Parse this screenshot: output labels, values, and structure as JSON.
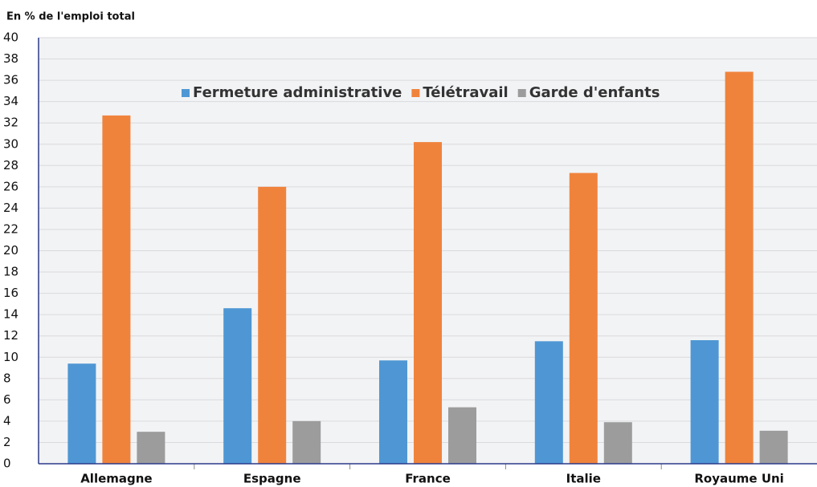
{
  "chart_data": {
    "type": "bar",
    "y_axis_label": "En % de l'emploi total",
    "categories": [
      "Allemagne",
      "Espagne",
      "France",
      "Italie",
      "Royaume Uni"
    ],
    "series": [
      {
        "name": "Fermeture administrative",
        "color": "#4f97d4",
        "values": [
          9.4,
          14.6,
          9.7,
          11.5,
          11.6
        ]
      },
      {
        "name": "Télétravail",
        "color": "#f0833c",
        "values": [
          32.7,
          26.0,
          30.2,
          27.3,
          36.8
        ]
      },
      {
        "name": "Garde d'enfants",
        "color": "#9c9c9c",
        "values": [
          3.0,
          4.0,
          5.3,
          3.9,
          3.1
        ]
      }
    ],
    "ylim": [
      0,
      40
    ],
    "yticks": [
      0,
      2,
      4,
      6,
      8,
      10,
      12,
      14,
      16,
      18,
      20,
      22,
      24,
      26,
      28,
      30,
      32,
      34,
      36,
      38,
      40
    ],
    "grid": true
  }
}
